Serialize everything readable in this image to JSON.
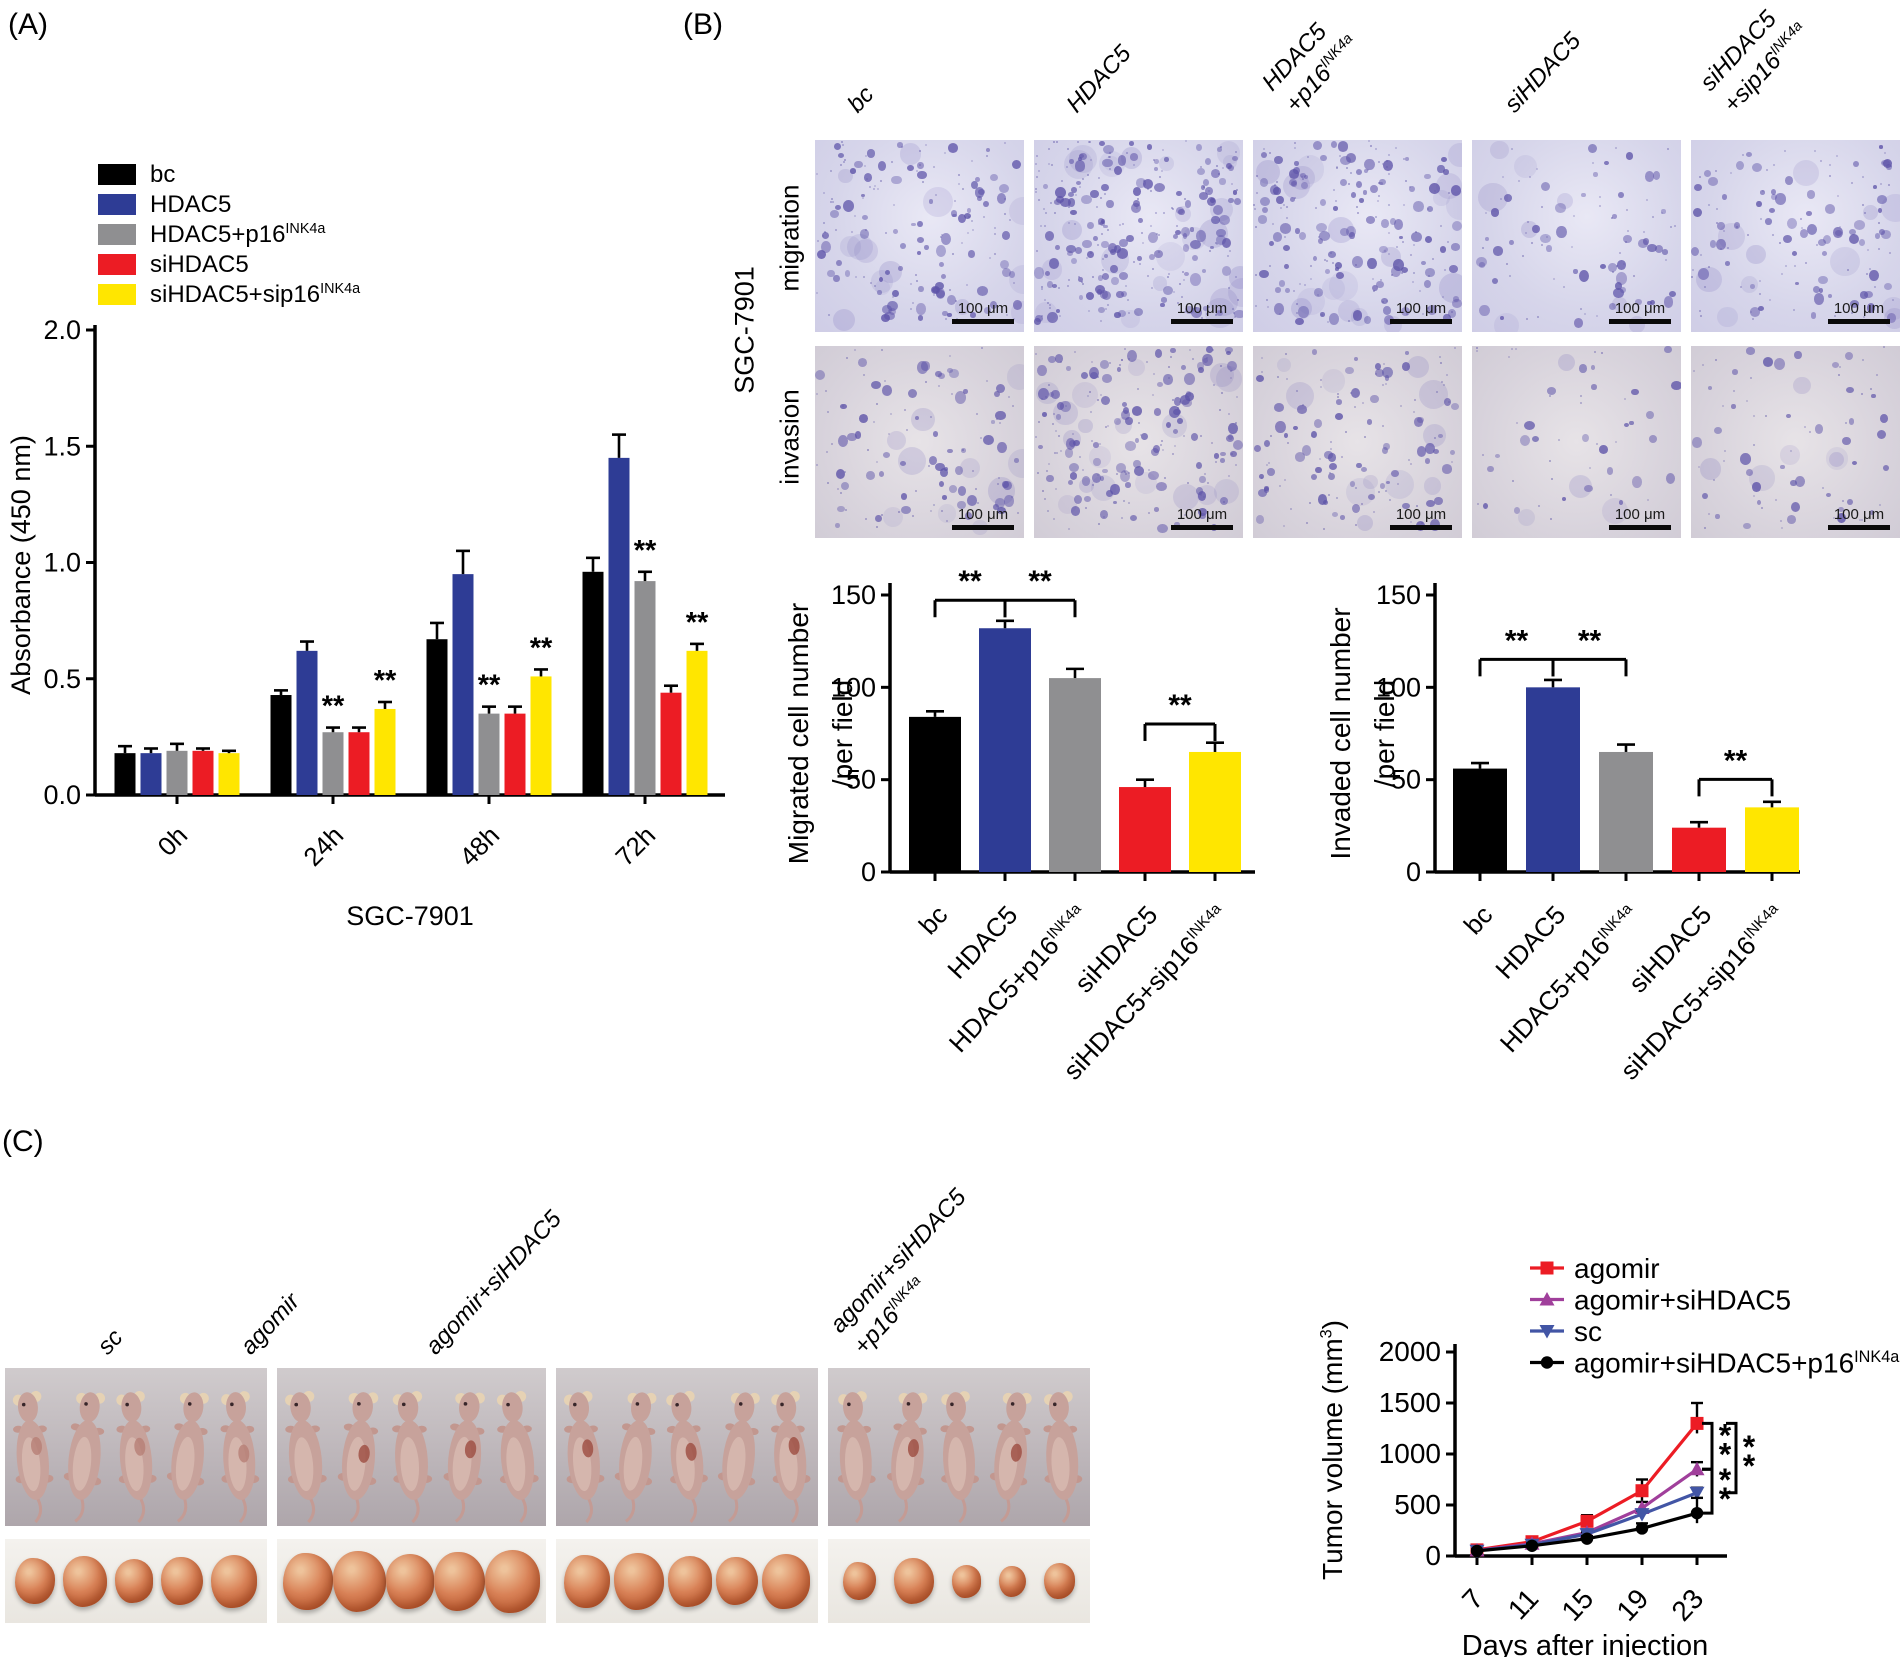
{
  "panels": {
    "a": "(A)",
    "b": "(B)",
    "c": "(C)"
  },
  "colors": {
    "black": "#000000",
    "blue": "#2e3c95",
    "gray": "#8f8f91",
    "red": "#ec1c24",
    "yellow": "#ffe600",
    "purple": "#a03f9b",
    "sc_blue": "#4255a5"
  },
  "panel_a": {
    "legend": [
      {
        "base": "bc",
        "sup": "",
        "color": "#000000"
      },
      {
        "base": "HDAC5",
        "sup": "",
        "color": "#2e3c95"
      },
      {
        "base": "HDAC5+p16",
        "sup": "INK4a",
        "color": "#8f8f91"
      },
      {
        "base": "siHDAC5",
        "sup": "",
        "color": "#ec1c24"
      },
      {
        "base": "siHDAC5+sip16",
        "sup": "INK4a",
        "color": "#ffe600"
      }
    ]
  },
  "panel_b": {
    "cell_line": "SGC-7901",
    "row_labels": [
      "migration",
      "invasion"
    ],
    "columns": [
      {
        "lines": [
          {
            "base": "bc",
            "sup": ""
          }
        ]
      },
      {
        "lines": [
          {
            "base": "HDAC5",
            "sup": ""
          }
        ]
      },
      {
        "lines": [
          {
            "base": "HDAC5",
            "sup": ""
          },
          {
            "base": "+p16",
            "sup": "INK4a"
          }
        ]
      },
      {
        "lines": [
          {
            "base": "siHDAC5",
            "sup": ""
          }
        ]
      },
      {
        "lines": [
          {
            "base": "siHDAC5",
            "sup": ""
          },
          {
            "base": "+sip16",
            "sup": "INK4a"
          }
        ]
      }
    ],
    "scale_bar_label": "100 μm",
    "cell_density": {
      "migration": [
        85,
        140,
        110,
        48,
        68
      ],
      "invasion": [
        58,
        105,
        68,
        26,
        38
      ]
    }
  },
  "panel_c": {
    "groups": [
      {
        "lines": [
          {
            "base": "sc",
            "sup": ""
          }
        ]
      },
      {
        "lines": [
          {
            "base": "agomir",
            "sup": ""
          }
        ]
      },
      {
        "lines": [
          {
            "base": "agomir+siHDAC5",
            "sup": ""
          }
        ]
      },
      {
        "lines": [
          {
            "base": "agomir+siHDAC5",
            "sup": ""
          },
          {
            "base": "+p16",
            "sup": "INK4a"
          }
        ]
      }
    ],
    "mice_per_group": 5
  },
  "chart_data": [
    {
      "id": "proliferation",
      "type": "bar",
      "title": "",
      "xlabel": "SGC-7901",
      "ylabel": "Absorbance (450 nm)",
      "categories": [
        "0h",
        "24h",
        "48h",
        "72h"
      ],
      "ylim": [
        0,
        2.0
      ],
      "yticks": [
        0.0,
        0.5,
        1.0,
        1.5,
        2.0
      ],
      "series": [
        {
          "name": "bc",
          "color": "#000000",
          "values": [
            0.18,
            0.43,
            0.67,
            0.96
          ],
          "errors": [
            0.03,
            0.02,
            0.07,
            0.06
          ],
          "sig": [
            "",
            "",
            "",
            ""
          ]
        },
        {
          "name": "HDAC5",
          "color": "#2e3c95",
          "values": [
            0.18,
            0.62,
            0.95,
            1.45
          ],
          "errors": [
            0.02,
            0.04,
            0.1,
            0.1
          ],
          "sig": [
            "",
            "",
            "",
            ""
          ]
        },
        {
          "name": "HDAC5+p16INK4a",
          "color": "#8f8f91",
          "values": [
            0.19,
            0.27,
            0.35,
            0.92
          ],
          "errors": [
            0.03,
            0.02,
            0.03,
            0.04
          ],
          "sig": [
            "",
            "**",
            "**",
            "**"
          ]
        },
        {
          "name": "siHDAC5",
          "color": "#ec1c24",
          "values": [
            0.19,
            0.27,
            0.35,
            0.44
          ],
          "errors": [
            0.01,
            0.02,
            0.03,
            0.03
          ],
          "sig": [
            "",
            "",
            "",
            ""
          ]
        },
        {
          "name": "siHDAC5+sip16INK4a",
          "color": "#ffe600",
          "values": [
            0.18,
            0.37,
            0.51,
            0.62
          ],
          "errors": [
            0.01,
            0.03,
            0.03,
            0.03
          ],
          "sig": [
            "",
            "**",
            "**",
            "**"
          ]
        }
      ]
    },
    {
      "id": "migrated",
      "type": "bar",
      "ylabel_lines": [
        "Migrated cell number",
        "/per field"
      ],
      "categories": [
        {
          "base": "bc",
          "sup": ""
        },
        {
          "base": "HDAC5",
          "sup": ""
        },
        {
          "base": "HDAC5+p16",
          "sup": "INK4a"
        },
        {
          "base": "siHDAC5",
          "sup": ""
        },
        {
          "base": "siHDAC5+sip16",
          "sup": "INK4a"
        }
      ],
      "ylim": [
        0,
        150
      ],
      "yticks": [
        0,
        50,
        100,
        150
      ],
      "values": [
        84,
        132,
        105,
        46,
        65
      ],
      "errors": [
        3,
        4,
        5,
        4,
        5
      ],
      "colors": [
        "#000000",
        "#2e3c95",
        "#8f8f91",
        "#ec1c24",
        "#ffe600"
      ],
      "brackets": [
        {
          "from": 0,
          "to": 1,
          "label": "**"
        },
        {
          "from": 1,
          "to": 2,
          "label": "**"
        },
        {
          "from": 3,
          "to": 4,
          "label": "**"
        }
      ]
    },
    {
      "id": "invaded",
      "type": "bar",
      "ylabel_lines": [
        "Invaded cell number",
        "/per field"
      ],
      "categories": [
        {
          "base": "bc",
          "sup": ""
        },
        {
          "base": "HDAC5",
          "sup": ""
        },
        {
          "base": "HDAC5+p16",
          "sup": "INK4a"
        },
        {
          "base": "siHDAC5",
          "sup": ""
        },
        {
          "base": "siHDAC5+sip16",
          "sup": "INK4a"
        }
      ],
      "ylim": [
        0,
        150
      ],
      "yticks": [
        0,
        50,
        100,
        150
      ],
      "values": [
        56,
        100,
        65,
        24,
        35
      ],
      "errors": [
        3,
        4,
        4,
        3,
        3
      ],
      "colors": [
        "#000000",
        "#2e3c95",
        "#8f8f91",
        "#ec1c24",
        "#ffe600"
      ],
      "brackets": [
        {
          "from": 0,
          "to": 1,
          "label": "**"
        },
        {
          "from": 1,
          "to": 2,
          "label": "**"
        },
        {
          "from": 3,
          "to": 4,
          "label": "**"
        }
      ]
    },
    {
      "id": "tumor_volume",
      "type": "line",
      "xlabel": "Days after injection",
      "ylabel": {
        "base": "Tumor volume (mm",
        "sup": "3",
        "tail": ")"
      },
      "x": [
        7,
        11,
        15,
        19,
        23
      ],
      "ylim": [
        0,
        2000
      ],
      "yticks": [
        0,
        500,
        1000,
        1500,
        2000
      ],
      "series": [
        {
          "name": "agomir",
          "label": {
            "base": "agomir",
            "sup": ""
          },
          "color": "#ec1c24",
          "marker": "square",
          "values": [
            60,
            140,
            340,
            640,
            1300
          ],
          "errors": [
            15,
            25,
            60,
            110,
            200
          ]
        },
        {
          "name": "agomir+siHDAC5",
          "label": {
            "base": "agomir+siHDAC5",
            "sup": ""
          },
          "color": "#a03f9b",
          "marker": "triangle-up",
          "values": [
            55,
            120,
            230,
            470,
            850
          ],
          "errors": [
            10,
            15,
            30,
            60,
            70
          ]
        },
        {
          "name": "sc",
          "label": {
            "base": "sc",
            "sup": ""
          },
          "color": "#4255a5",
          "marker": "triangle-down",
          "values": [
            52,
            110,
            215,
            410,
            620
          ],
          "errors": [
            8,
            12,
            20,
            35,
            50
          ]
        },
        {
          "name": "agomir+siHDAC5+p16INK4a",
          "label": {
            "base": "agomir+siHDAC5+p16",
            "sup": "INK4a"
          },
          "color": "#000000",
          "marker": "circle",
          "values": [
            50,
            100,
            170,
            270,
            420
          ],
          "errors": [
            8,
            12,
            25,
            50,
            150
          ]
        }
      ],
      "sig_brackets": [
        {
          "from": 0,
          "to": 1,
          "label": "**"
        },
        {
          "from": 1,
          "to": 3,
          "label": "**"
        },
        {
          "from": 0,
          "to": 2,
          "label": "**",
          "offset": 24
        }
      ]
    }
  ]
}
